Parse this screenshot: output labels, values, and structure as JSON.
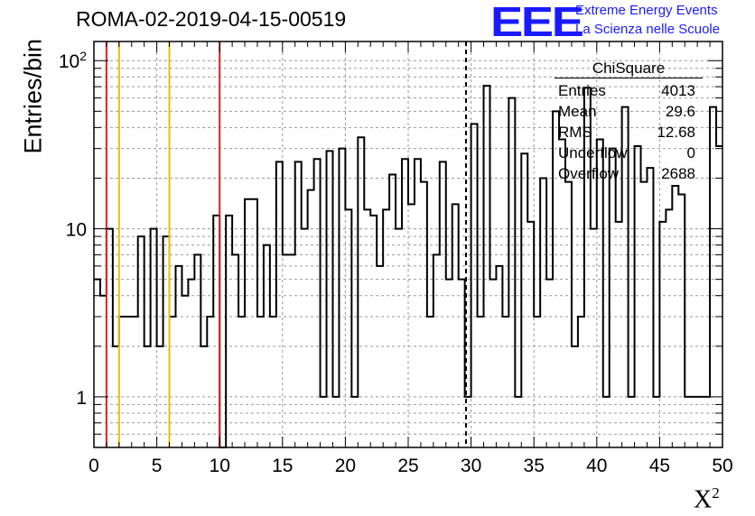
{
  "title": "ROMA-02-2019-04-15-00519",
  "logo": {
    "mark": "EEE",
    "line1": "Extreme Energy Events",
    "line2": "La Scienza nelle Scuole",
    "color": "#1a1aff"
  },
  "stats": {
    "name": "ChiSquare",
    "rows": [
      {
        "label": "Entries",
        "value": "4013"
      },
      {
        "label": "Mean",
        "value": "29.6"
      },
      {
        "label": "RMS",
        "value": "12.68"
      },
      {
        "label": "Underflow",
        "value": "0"
      },
      {
        "label": "Overflow",
        "value": "2688"
      }
    ]
  },
  "chart_data": {
    "type": "bar",
    "histogram": "step",
    "title": "ROMA-02-2019-04-15-00519",
    "xlabel": "X²",
    "ylabel": "Entries/bin",
    "xlim": [
      0,
      50
    ],
    "ylim": [
      0.5,
      130
    ],
    "yscale": "log",
    "grid": true,
    "bin_width": 0.5,
    "x_ticks": [
      "0",
      "5",
      "10",
      "15",
      "20",
      "25",
      "30",
      "35",
      "40",
      "45",
      "50"
    ],
    "y_ticks": [
      "1",
      "10",
      "10²"
    ],
    "values": [
      5,
      4,
      10,
      2,
      3,
      3,
      3,
      9,
      2,
      10,
      2,
      9,
      3,
      6,
      4,
      5,
      7,
      2,
      3,
      12,
      0.1,
      12,
      7,
      3,
      15,
      15,
      3,
      8,
      3,
      25,
      7,
      7,
      25,
      10,
      17,
      26,
      1,
      29,
      1,
      30,
      13,
      1,
      35,
      13,
      12,
      6,
      13,
      21,
      10,
      26,
      14,
      26,
      19,
      3,
      7,
      25,
      5,
      14,
      5,
      1,
      42,
      3,
      71,
      5,
      6,
      3,
      60,
      1,
      28,
      11,
      3,
      20,
      5,
      50,
      34,
      19,
      2,
      3,
      69,
      10,
      34,
      1,
      30,
      11,
      53,
      1,
      31,
      19,
      23,
      1,
      11,
      13,
      18,
      16,
      1,
      1,
      1,
      1,
      53,
      31
    ],
    "vertical_lines": [
      {
        "x": 1,
        "color": "#dd2222",
        "style": "solid"
      },
      {
        "x": 2,
        "color": "#ecc000",
        "style": "solid"
      },
      {
        "x": 6,
        "color": "#ecc000",
        "style": "solid"
      },
      {
        "x": 10,
        "color": "#dd2222",
        "style": "solid"
      },
      {
        "x": 29.6,
        "color": "#000000",
        "style": "dashed"
      }
    ]
  }
}
